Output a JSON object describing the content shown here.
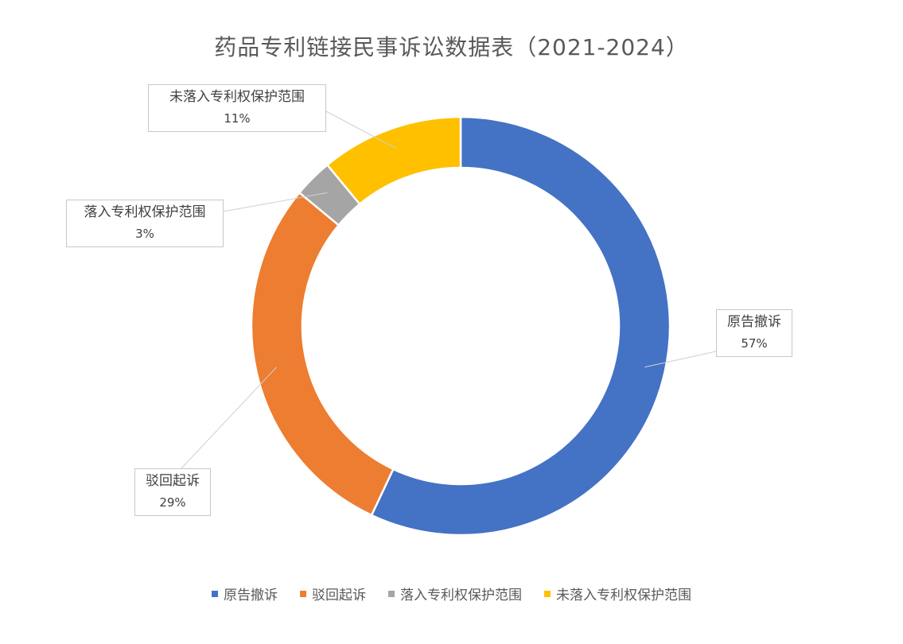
{
  "chart_data": {
    "type": "pie",
    "variant": "doughnut",
    "title": "药品专利链接民事诉讼数据表（2021-2024）",
    "categories": [
      "原告撤诉",
      "驳回起诉",
      "落入专利权保护范围",
      "未落入专利权保护范围"
    ],
    "values": [
      57,
      29,
      3,
      11
    ],
    "value_labels": [
      "57%",
      "29%",
      "3%",
      "11%"
    ],
    "colors": [
      "#4472C4",
      "#ED7D31",
      "#A5A5A5",
      "#FFC000"
    ],
    "legend_position": "bottom",
    "start_angle": "12-o'clock, clockwise"
  }
}
